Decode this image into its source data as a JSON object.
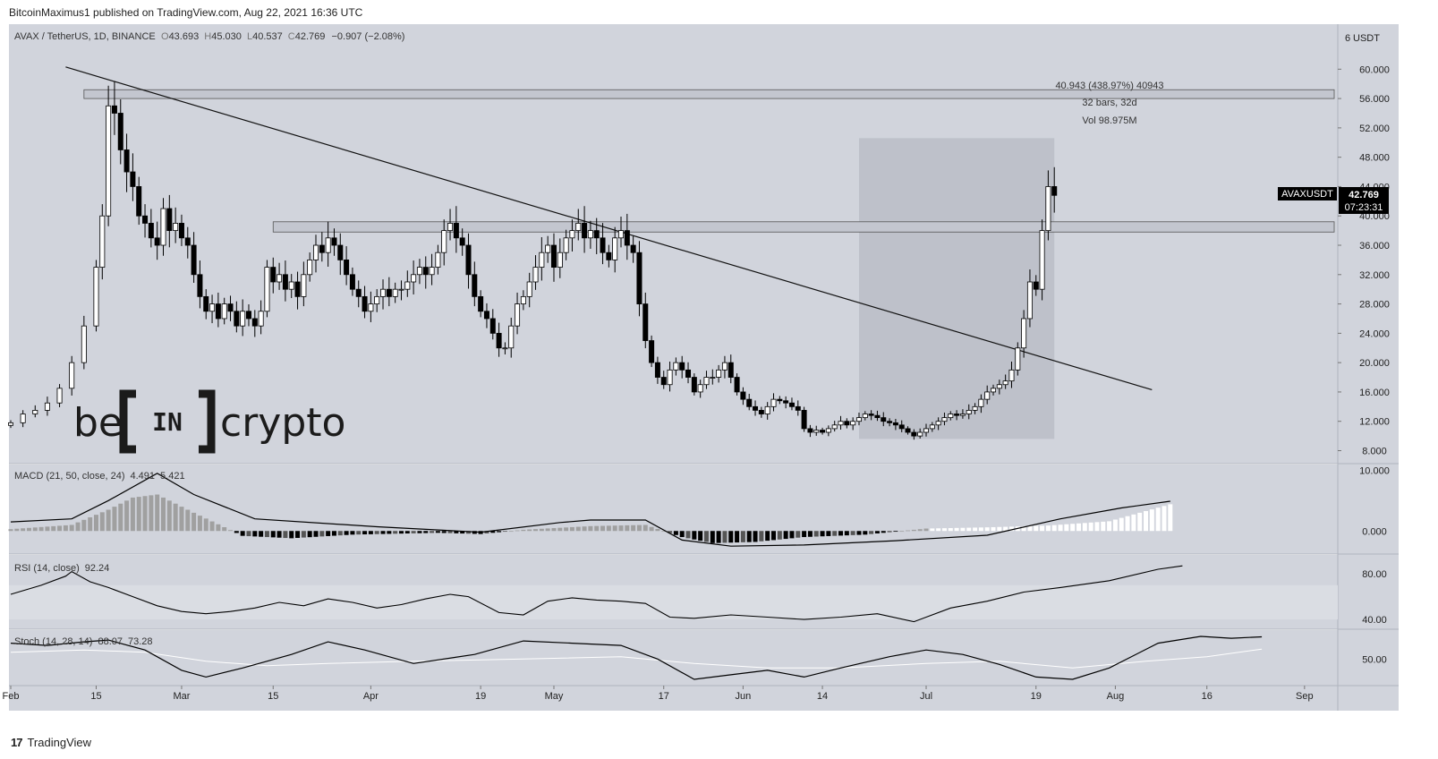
{
  "header": {
    "publish_line": "BitcoinMaximus1 published on TradingView.com, Aug 22, 2021 16:36 UTC"
  },
  "footer": {
    "brand": "TradingView",
    "logo_glyph": "17"
  },
  "watermark": {
    "text_left": "be",
    "text_mid": "IN",
    "text_right": "crypto"
  },
  "symbol_info": {
    "name": "AVAX / TetherUS, 1D, BINANCE",
    "open_label": "O",
    "open": "43.693",
    "high_label": "H",
    "high": "45.030",
    "low_label": "L",
    "low": "40.537",
    "close_label": "C",
    "close": "42.769",
    "change": "−0.907 (−2.08%)"
  },
  "price_tag": {
    "symbol": "AVAXUSDT",
    "price": "42.769",
    "countdown": "07:23:31"
  },
  "measure": {
    "line1": "40.943 (438.97%) 40943",
    "line2": "32 bars, 32d",
    "line3": "Vol 98.975M"
  },
  "currency_label": "USDT",
  "macd": {
    "title": "MACD (21, 50, close, 24)",
    "v1": "4.491",
    "v2": "5.421"
  },
  "rsi": {
    "title": "RSI (14, close)",
    "value": "92.24"
  },
  "stoch": {
    "title": "Stoch (14, 28, 14)",
    "k": "88.07",
    "d": "73.28"
  },
  "colors": {
    "bg": "#d1d4dc",
    "panel_border": "#b8bcc6",
    "candle_up": "#ffffff",
    "candle_down": "#000000",
    "box": "#b9bcc5"
  },
  "chart_data": {
    "type": "candlestick",
    "title": "AVAX / TetherUS, 1D, BINANCE",
    "y_axis_ticks": [
      "60.000",
      "56.000",
      "52.000",
      "48.000",
      "44.000",
      "40.000",
      "36.000",
      "32.000",
      "28.000",
      "24.000",
      "20.000",
      "16.000",
      "12.000",
      "8.000"
    ],
    "y_top_label": "6",
    "ylim": [
      6.5,
      64
    ],
    "x_axis_ticks": [
      "Feb",
      "15",
      "Mar",
      "15",
      "Apr",
      "19",
      "May",
      "17",
      "Jun",
      "14",
      "Jul",
      "19",
      "Aug",
      "16",
      "Sep"
    ],
    "x_tick_days": [
      0,
      14,
      28,
      43,
      59,
      77,
      89,
      107,
      120,
      133,
      150,
      168,
      181,
      196,
      212
    ],
    "close_path": [
      [
        0,
        11.8
      ],
      [
        2,
        13
      ],
      [
        4,
        13.5
      ],
      [
        6,
        14.5
      ],
      [
        8,
        16.5
      ],
      [
        10,
        20
      ],
      [
        12,
        25
      ],
      [
        14,
        33
      ],
      [
        15,
        40
      ],
      [
        16,
        55
      ],
      [
        17,
        54
      ],
      [
        18,
        49
      ],
      [
        19,
        46
      ],
      [
        20,
        44
      ],
      [
        21,
        40
      ],
      [
        22,
        39
      ],
      [
        23,
        37
      ],
      [
        24,
        36
      ],
      [
        25,
        41
      ],
      [
        26,
        38
      ],
      [
        27,
        39
      ],
      [
        28,
        37
      ],
      [
        29,
        36
      ],
      [
        30,
        32
      ],
      [
        31,
        29
      ],
      [
        32,
        27
      ],
      [
        33,
        28
      ],
      [
        34,
        26
      ],
      [
        35,
        28
      ],
      [
        36,
        27
      ],
      [
        37,
        25
      ],
      [
        38,
        27
      ],
      [
        39,
        26
      ],
      [
        40,
        25
      ],
      [
        41,
        27
      ],
      [
        42,
        33
      ],
      [
        43,
        31
      ],
      [
        44,
        32
      ],
      [
        45,
        30
      ],
      [
        46,
        31
      ],
      [
        47,
        29
      ],
      [
        48,
        32
      ],
      [
        49,
        34
      ],
      [
        50,
        36
      ],
      [
        51,
        35
      ],
      [
        52,
        37
      ],
      [
        53,
        36
      ],
      [
        54,
        34
      ],
      [
        55,
        32
      ],
      [
        56,
        30
      ],
      [
        57,
        29
      ],
      [
        58,
        27
      ],
      [
        59,
        28
      ],
      [
        60,
        29
      ],
      [
        61,
        30
      ],
      [
        62,
        29
      ],
      [
        63,
        30
      ],
      [
        64,
        30
      ],
      [
        65,
        31
      ],
      [
        66,
        32
      ],
      [
        67,
        33
      ],
      [
        68,
        32
      ],
      [
        69,
        33
      ],
      [
        70,
        35
      ],
      [
        71,
        38
      ],
      [
        72,
        39
      ],
      [
        73,
        37
      ],
      [
        74,
        36
      ],
      [
        75,
        32
      ],
      [
        76,
        29
      ],
      [
        77,
        27
      ],
      [
        78,
        26
      ],
      [
        79,
        24
      ],
      [
        80,
        22
      ],
      [
        81,
        22
      ],
      [
        82,
        25
      ],
      [
        83,
        28
      ],
      [
        84,
        29
      ],
      [
        85,
        31
      ],
      [
        86,
        33
      ],
      [
        87,
        35
      ],
      [
        88,
        36
      ],
      [
        89,
        33
      ],
      [
        90,
        35
      ],
      [
        91,
        37
      ],
      [
        92,
        38
      ],
      [
        93,
        39
      ],
      [
        94,
        37
      ],
      [
        95,
        38
      ],
      [
        96,
        37
      ],
      [
        97,
        35
      ],
      [
        98,
        34
      ],
      [
        99,
        37
      ],
      [
        100,
        38
      ],
      [
        101,
        36
      ],
      [
        102,
        35
      ],
      [
        103,
        28
      ],
      [
        104,
        23
      ],
      [
        105,
        20
      ],
      [
        106,
        18
      ],
      [
        107,
        17
      ],
      [
        108,
        19
      ],
      [
        109,
        20
      ],
      [
        110,
        19
      ],
      [
        111,
        18
      ],
      [
        112,
        16
      ],
      [
        113,
        17
      ],
      [
        114,
        18
      ],
      [
        115,
        18
      ],
      [
        116,
        19
      ],
      [
        117,
        20
      ],
      [
        118,
        18
      ],
      [
        119,
        16
      ],
      [
        120,
        15
      ],
      [
        121,
        14
      ],
      [
        122,
        13.5
      ],
      [
        123,
        13
      ],
      [
        124,
        14
      ],
      [
        125,
        15
      ],
      [
        126,
        14.8
      ],
      [
        127,
        14.5
      ],
      [
        128,
        14
      ],
      [
        129,
        13.5
      ],
      [
        130,
        11
      ],
      [
        131,
        10.5
      ],
      [
        132,
        10.8
      ],
      [
        133,
        10.5
      ],
      [
        134,
        11
      ],
      [
        135,
        11.5
      ],
      [
        136,
        12
      ],
      [
        137,
        11.5
      ],
      [
        138,
        12
      ],
      [
        139,
        12.5
      ],
      [
        140,
        13
      ],
      [
        141,
        12.8
      ],
      [
        142,
        12.5
      ],
      [
        143,
        12
      ],
      [
        144,
        11.8
      ],
      [
        145,
        11.5
      ],
      [
        146,
        11
      ],
      [
        147,
        10.5
      ],
      [
        148,
        10
      ],
      [
        149,
        10.5
      ],
      [
        150,
        11
      ],
      [
        151,
        11.5
      ],
      [
        152,
        12
      ],
      [
        153,
        12.5
      ],
      [
        154,
        13
      ],
      [
        155,
        12.8
      ],
      [
        156,
        13
      ],
      [
        157,
        13.5
      ],
      [
        158,
        14
      ],
      [
        159,
        15
      ],
      [
        160,
        16
      ],
      [
        161,
        16.5
      ],
      [
        162,
        17
      ],
      [
        163,
        17.5
      ],
      [
        164,
        19
      ],
      [
        165,
        22
      ],
      [
        166,
        26
      ],
      [
        167,
        31
      ],
      [
        168,
        30
      ],
      [
        169,
        38
      ],
      [
        170,
        44
      ],
      [
        171,
        42.8
      ]
    ],
    "resistance_box_upper": [
      56,
      57.2
    ],
    "resistance_box_mid": [
      37.8,
      39.2
    ],
    "trendline": {
      "from": [
        9,
        60.3
      ],
      "to": [
        187,
        16.3
      ]
    },
    "measure_box": {
      "day_from": 139,
      "day_to": 171,
      "low": 9.6,
      "high": 50.6
    },
    "macd_series": {
      "ylim": [
        -3.5,
        10.5
      ],
      "y_ticks": [
        "10.000",
        "0.000"
      ],
      "macd_line": [
        [
          0,
          1.5
        ],
        [
          10,
          2
        ],
        [
          16,
          5
        ],
        [
          24,
          9.5
        ],
        [
          30,
          6
        ],
        [
          40,
          2
        ],
        [
          60,
          0.7
        ],
        [
          77,
          -0.2
        ],
        [
          90,
          1.4
        ],
        [
          95,
          1.8
        ],
        [
          104,
          1.8
        ],
        [
          110,
          -1.5
        ],
        [
          118,
          -2.5
        ],
        [
          130,
          -2.3
        ],
        [
          145,
          -1.6
        ],
        [
          160,
          -0.7
        ],
        [
          172,
          2
        ],
        [
          182,
          3.8
        ],
        [
          190,
          4.9
        ]
      ],
      "signal_line": [
        [
          0,
          0.4
        ],
        [
          16,
          1.2
        ],
        [
          30,
          1.2
        ],
        [
          50,
          0.6
        ],
        [
          77,
          0.2
        ],
        [
          104,
          0.6
        ],
        [
          118,
          -1
        ],
        [
          145,
          -0.8
        ],
        [
          160,
          -0.4
        ],
        [
          190,
          -0.5
        ]
      ],
      "histogram": [
        [
          0,
          0.3
        ],
        [
          10,
          1
        ],
        [
          16,
          3.5
        ],
        [
          20,
          5.5
        ],
        [
          24,
          6
        ],
        [
          30,
          3
        ],
        [
          38,
          -0.8
        ],
        [
          46,
          -1.2
        ],
        [
          56,
          -0.6
        ],
        [
          70,
          -0.3
        ],
        [
          77,
          -0.5
        ],
        [
          84,
          0.2
        ],
        [
          95,
          0.8
        ],
        [
          104,
          1
        ],
        [
          110,
          -1
        ],
        [
          115,
          -2
        ],
        [
          122,
          -1.8
        ],
        [
          130,
          -1
        ],
        [
          140,
          -0.6
        ],
        [
          150,
          0.4
        ],
        [
          160,
          0.6
        ],
        [
          170,
          0.9
        ],
        [
          180,
          1.6
        ],
        [
          190,
          4.4
        ]
      ]
    },
    "rsi_series": {
      "ylim": [
        33,
        95
      ],
      "y_ticks": [
        "80.00",
        "40.00"
      ],
      "band": [
        40,
        70
      ],
      "values": [
        [
          0,
          62
        ],
        [
          5,
          70
        ],
        [
          9,
          78
        ],
        [
          10,
          82
        ],
        [
          13,
          73
        ],
        [
          16,
          68
        ],
        [
          20,
          60
        ],
        [
          24,
          52
        ],
        [
          28,
          47
        ],
        [
          32,
          45
        ],
        [
          36,
          47
        ],
        [
          40,
          50
        ],
        [
          44,
          55
        ],
        [
          48,
          52
        ],
        [
          52,
          58
        ],
        [
          56,
          55
        ],
        [
          60,
          50
        ],
        [
          64,
          53
        ],
        [
          68,
          58
        ],
        [
          72,
          62
        ],
        [
          75,
          60
        ],
        [
          80,
          46
        ],
        [
          84,
          44
        ],
        [
          88,
          56
        ],
        [
          92,
          59
        ],
        [
          96,
          57
        ],
        [
          100,
          56
        ],
        [
          104,
          54
        ],
        [
          108,
          42
        ],
        [
          112,
          41
        ],
        [
          118,
          44
        ],
        [
          124,
          42
        ],
        [
          130,
          40
        ],
        [
          136,
          42
        ],
        [
          142,
          45
        ],
        [
          148,
          38
        ],
        [
          154,
          50
        ],
        [
          160,
          56
        ],
        [
          166,
          64
        ],
        [
          172,
          68
        ],
        [
          180,
          74
        ],
        [
          188,
          84
        ],
        [
          192,
          87
        ]
      ]
    },
    "stoch_series": {
      "ylim": [
        -5,
        110
      ],
      "y_ticks": [
        "50.00"
      ],
      "k": [
        [
          0,
          85
        ],
        [
          6,
          80
        ],
        [
          12,
          88
        ],
        [
          16,
          92
        ],
        [
          22,
          70
        ],
        [
          28,
          25
        ],
        [
          32,
          10
        ],
        [
          38,
          30
        ],
        [
          46,
          60
        ],
        [
          52,
          88
        ],
        [
          58,
          70
        ],
        [
          66,
          40
        ],
        [
          76,
          60
        ],
        [
          84,
          90
        ],
        [
          92,
          85
        ],
        [
          100,
          80
        ],
        [
          106,
          50
        ],
        [
          112,
          5
        ],
        [
          118,
          15
        ],
        [
          124,
          25
        ],
        [
          130,
          10
        ],
        [
          136,
          30
        ],
        [
          144,
          55
        ],
        [
          150,
          70
        ],
        [
          156,
          60
        ],
        [
          162,
          38
        ],
        [
          168,
          10
        ],
        [
          174,
          5
        ],
        [
          180,
          30
        ],
        [
          188,
          85
        ],
        [
          195,
          100
        ],
        [
          200,
          96
        ],
        [
          205,
          99
        ]
      ],
      "d": [
        [
          0,
          65
        ],
        [
          12,
          70
        ],
        [
          22,
          65
        ],
        [
          32,
          45
        ],
        [
          42,
          35
        ],
        [
          52,
          40
        ],
        [
          66,
          45
        ],
        [
          84,
          50
        ],
        [
          100,
          55
        ],
        [
          112,
          40
        ],
        [
          124,
          30
        ],
        [
          136,
          30
        ],
        [
          150,
          40
        ],
        [
          162,
          45
        ],
        [
          174,
          30
        ],
        [
          186,
          45
        ],
        [
          196,
          55
        ],
        [
          205,
          72
        ]
      ]
    }
  }
}
